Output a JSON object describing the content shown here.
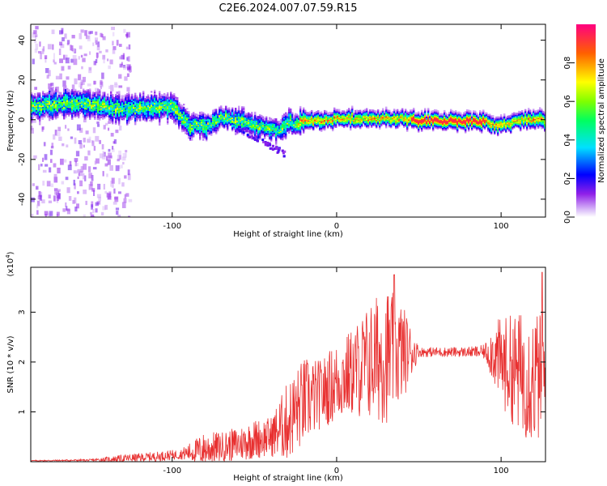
{
  "title": "C2E6.2024.007.07.59.R15",
  "chart_data": [
    {
      "type": "heatmap",
      "xlabel": "Height of straight line (km)",
      "ylabel": "Frequency (Hz)",
      "xlim": [
        -186,
        127
      ],
      "ylim": [
        -49,
        48
      ],
      "xticks": [
        -100,
        0,
        100
      ],
      "yticks": [
        -40,
        -20,
        0,
        20,
        40
      ],
      "grid": false,
      "ridge": {
        "x": [
          -186,
          -170,
          -160,
          -150,
          -140,
          -130,
          -120,
          -110,
          -100,
          -95,
          -90,
          -85,
          -80,
          -75,
          -70,
          -65,
          -60,
          -55,
          -50,
          -45,
          -40,
          -35,
          -30,
          -25,
          -20,
          -10,
          0,
          10,
          20,
          30,
          40,
          50,
          60,
          70,
          80,
          90,
          95,
          100,
          110,
          120,
          127
        ],
        "y": [
          7,
          8,
          9,
          8,
          7,
          6,
          6,
          7,
          7,
          2,
          -3,
          -2,
          -3,
          -1,
          2,
          1,
          0,
          -1,
          -2,
          -3,
          -4,
          -5,
          0,
          -2,
          0,
          0,
          1,
          1,
          1,
          1,
          1,
          0,
          0,
          0,
          0,
          0,
          -2,
          -2,
          0,
          1,
          0
        ]
      },
      "colorbar": {
        "label": "Normalized spectral amplitude",
        "range": [
          0,
          1
        ],
        "ticks": [
          0.0,
          0.2,
          0.4,
          0.6,
          0.8
        ]
      }
    },
    {
      "type": "line",
      "xlabel": "Height of straight line (km)",
      "ylabel": "SNR (10 * v/v)",
      "scale_label": "(x10",
      "scale_exp": "4",
      "scale_close": ")",
      "xlim": [
        -186,
        127
      ],
      "ylim": [
        0,
        3.9
      ],
      "xticks": [
        -100,
        0,
        100
      ],
      "yticks": [
        1,
        2,
        3
      ],
      "color": "#e83030",
      "envelope": {
        "x": [
          -186,
          -150,
          -130,
          -110,
          -95,
          -80,
          -70,
          -60,
          -50,
          -40,
          -30,
          -20,
          -10,
          0,
          10,
          20,
          30,
          40,
          50,
          60,
          70,
          80,
          90,
          95,
          100,
          110,
          120,
          127
        ],
        "base": [
          0.02,
          0.03,
          0.06,
          0.1,
          0.15,
          0.25,
          0.3,
          0.35,
          0.45,
          0.5,
          0.8,
          1.2,
          1.35,
          1.6,
          1.8,
          2.0,
          2.15,
          2.2,
          2.2,
          2.2,
          2.2,
          2.2,
          2.2,
          2.2,
          2.0,
          1.8,
          1.7,
          1.7
        ],
        "amplitude": [
          0.01,
          0.02,
          0.08,
          0.1,
          0.1,
          0.35,
          0.3,
          0.35,
          0.4,
          0.4,
          0.8,
          0.9,
          0.7,
          0.8,
          0.9,
          1.2,
          1.4,
          1.0,
          0.1,
          0.1,
          0.1,
          0.1,
          0.15,
          0.6,
          0.9,
          1.2,
          1.4,
          1.2
        ]
      },
      "peaks": [
        {
          "x": 35,
          "y": 3.75
        },
        {
          "x": 125,
          "y": 3.8
        }
      ]
    }
  ]
}
